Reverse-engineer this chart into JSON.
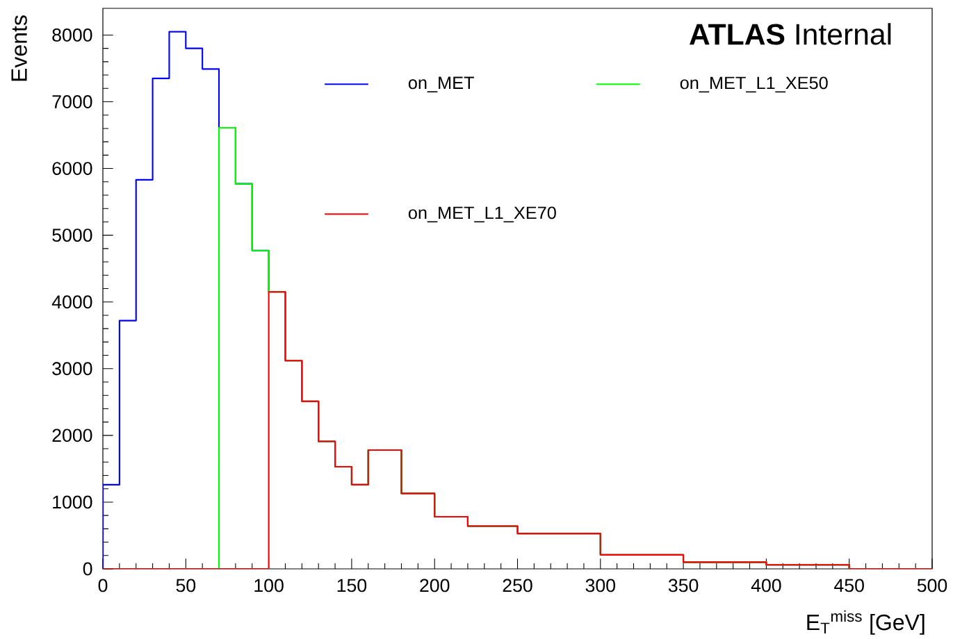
{
  "chart_data": {
    "type": "histogram",
    "xlabel": "E$_{T}$$^{miss}$ [GeV]",
    "ylabel": "Events",
    "annotations": [
      "**ATLAS** Internal"
    ],
    "bins": [
      0,
      10,
      20,
      30,
      40,
      50,
      60,
      70,
      80,
      90,
      100,
      110,
      120,
      130,
      140,
      150,
      160,
      180,
      200,
      220,
      250,
      300,
      350,
      400,
      450,
      500
    ],
    "series": [
      {
        "name": "on_MET",
        "color": "#0000ff",
        "values": [
          1260,
          3720,
          5830,
          7350,
          8050,
          7800,
          7490,
          6610,
          5770,
          4770,
          4150,
          3120,
          2510,
          1910,
          1530,
          1260,
          1780,
          1130,
          780,
          640,
          530,
          210,
          100,
          60,
          0
        ]
      },
      {
        "name": "on_MET_L1_XE50",
        "color": "#00ff00",
        "values": [
          0,
          0,
          0,
          0,
          0,
          0,
          0,
          6610,
          5770,
          4770,
          4150,
          3120,
          2510,
          1910,
          1530,
          1260,
          1780,
          1130,
          780,
          640,
          530,
          210,
          100,
          60,
          0
        ]
      },
      {
        "name": "on_MET_L1_XE70",
        "color": "#ff0000",
        "values": [
          0,
          0,
          0,
          0,
          0,
          0,
          0,
          0,
          0,
          0,
          4150,
          3120,
          2510,
          1910,
          1530,
          1260,
          1780,
          1130,
          780,
          640,
          530,
          210,
          100,
          60,
          0
        ]
      }
    ],
    "xlim": [
      0,
      500
    ],
    "ylim": [
      0,
      8400
    ],
    "xticks": [
      0,
      50,
      100,
      150,
      200,
      250,
      300,
      350,
      400,
      450,
      500
    ],
    "yticks": [
      0,
      1000,
      2000,
      3000,
      4000,
      5000,
      6000,
      7000,
      8000
    ],
    "legend": "top",
    "grid": false
  }
}
